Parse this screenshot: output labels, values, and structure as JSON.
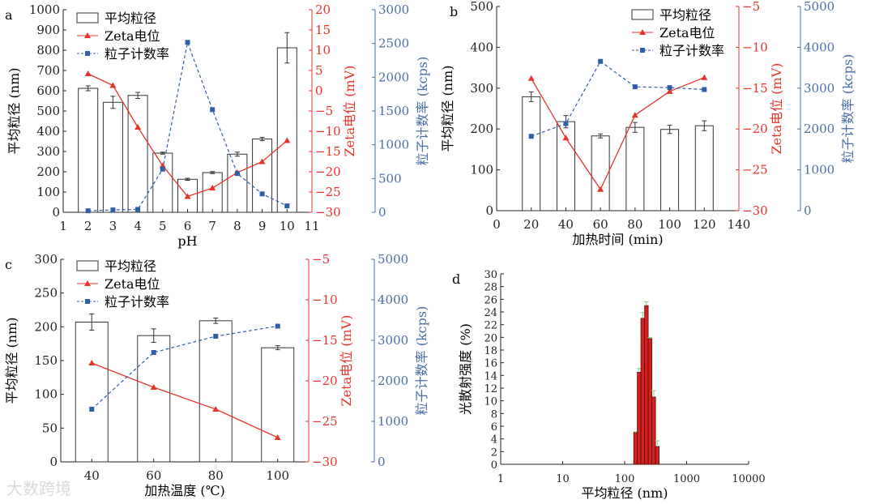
{
  "watermark": "大数跨境",
  "colors": {
    "bar_edge": "#333333",
    "zeta": "#e8332a",
    "count": "#2e5fa8",
    "count_axis": "#4a6fa5",
    "hist": "#d42020",
    "hist_err": "#7fd17f"
  },
  "legend": {
    "size": "平均粒径",
    "zeta": "Zeta电位",
    "count": "粒子计数率"
  },
  "chart_data": [
    {
      "panel": "a",
      "type": "bar+line",
      "xlabel": "pH",
      "ylabel": "平均粒径 (nm)",
      "y2label": "Zeta电位 (mV)",
      "y3label": "粒子计数率 (kcps)",
      "xlim": [
        1,
        11
      ],
      "xticks": [
        1,
        2,
        3,
        4,
        5,
        6,
        7,
        8,
        9,
        10,
        11
      ],
      "ylim": [
        0,
        1000
      ],
      "yticks": [
        0,
        100,
        200,
        300,
        400,
        500,
        600,
        700,
        800,
        900,
        1000
      ],
      "y2lim": [
        -30,
        20
      ],
      "y2ticks": [
        -30,
        -25,
        -20,
        -15,
        -10,
        -5,
        0,
        5,
        10,
        15,
        20
      ],
      "y3lim": [
        0,
        3000
      ],
      "y3ticks": [
        0,
        500,
        1000,
        1500,
        2000,
        2500,
        3000
      ],
      "x": [
        2,
        3,
        4,
        5,
        6,
        7,
        8,
        9,
        10
      ],
      "size": [
        612,
        543,
        577,
        292,
        163,
        196,
        287,
        362,
        812
      ],
      "size_err": [
        12,
        30,
        15,
        5,
        5,
        5,
        10,
        8,
        75
      ],
      "zeta": [
        4.2,
        1.3,
        -9.0,
        -18.5,
        -26.1,
        -24.0,
        -20.2,
        -17.5,
        -12.3
      ],
      "count": [
        22,
        35,
        43,
        639,
        2517,
        1520,
        574,
        272,
        95
      ]
    },
    {
      "panel": "b",
      "type": "bar+line",
      "xlabel": "加热时间 (min)",
      "ylabel": "平均粒径 (nm)",
      "y2label": "Zeta电位 (mV)",
      "y3label": "粒子计数率 (kcps)",
      "xlim": [
        0,
        140
      ],
      "xticks": [
        0,
        20,
        40,
        60,
        80,
        100,
        120,
        140
      ],
      "ylim": [
        0,
        500
      ],
      "yticks": [
        0,
        100,
        200,
        300,
        400,
        500
      ],
      "y2lim": [
        -30,
        -5
      ],
      "y2ticks": [
        -30,
        -25,
        -20,
        -15,
        -10,
        -5
      ],
      "y3lim": [
        0,
        5000
      ],
      "y3ticks": [
        0,
        1000,
        2000,
        3000,
        4000,
        5000
      ],
      "x": [
        20,
        40,
        60,
        80,
        100,
        120
      ],
      "size": [
        279,
        218,
        183,
        204,
        199,
        208
      ],
      "size_err": [
        12,
        15,
        5,
        12,
        10,
        12
      ],
      "zeta": [
        -13.8,
        -21.1,
        -27.4,
        -18.3,
        -15.4,
        -13.7
      ],
      "count": [
        1821,
        2132,
        3656,
        3033,
        3013,
        2967
      ]
    },
    {
      "panel": "c",
      "type": "bar+line",
      "xlabel": "加热温度 (℃)",
      "ylabel": "平均粒径 (nm)",
      "y2label": "Zeta电位 (mV)",
      "y3label": "粒子计数率 (kcps)",
      "xlim": [
        30,
        110
      ],
      "xticks": [
        40,
        60,
        80,
        100
      ],
      "ylim": [
        0,
        300
      ],
      "yticks": [
        0,
        50,
        100,
        150,
        200,
        250,
        300
      ],
      "y2lim": [
        -30,
        -5
      ],
      "y2ticks": [
        -30,
        -25,
        -20,
        -15,
        -10,
        -5
      ],
      "y3lim": [
        0,
        5000
      ],
      "y3ticks": [
        0,
        1000,
        2000,
        3000,
        4000,
        5000
      ],
      "x": [
        40,
        60,
        80,
        100
      ],
      "size": [
        207,
        187,
        209,
        169
      ],
      "size_err": [
        12,
        10,
        4,
        3
      ],
      "zeta": [
        -17.8,
        -20.8,
        -23.5,
        -27.0
      ],
      "count": [
        1300,
        2700,
        3100,
        3350
      ]
    },
    {
      "panel": "d",
      "type": "bar",
      "xlabel": "平均粒径 (nm)",
      "ylabel": "光散射强度 (%)",
      "xscale": "log",
      "xlim": [
        1,
        10000
      ],
      "xticks": [
        1,
        10,
        100,
        1000,
        10000
      ],
      "ylim": [
        0,
        30
      ],
      "yticks": [
        0,
        2,
        4,
        6,
        8,
        10,
        12,
        14,
        16,
        18,
        20,
        22,
        24,
        26,
        28,
        30
      ],
      "bin_edges": [
        140,
        160,
        183,
        210,
        240,
        275,
        315,
        360
      ],
      "values": [
        5.0,
        14.5,
        23.0,
        25.0,
        19.8,
        10.6,
        2.8
      ],
      "errors": [
        0.1,
        0.6,
        0.9,
        0.6,
        0.2,
        1.0,
        0.9
      ]
    }
  ]
}
